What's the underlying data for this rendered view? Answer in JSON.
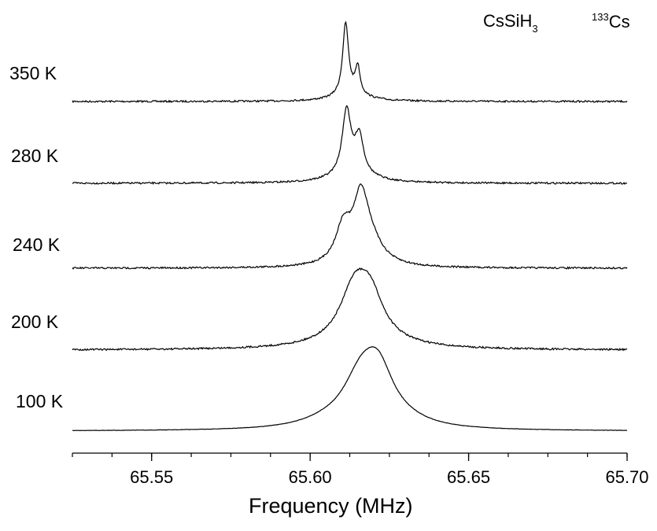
{
  "chart_data": {
    "type": "line",
    "title_main": "CsSiH",
    "title_sub": "3",
    "nucleus_sup": "133",
    "nucleus_main": "Cs",
    "xlabel": "Frequency (MHz)",
    "xlim": [
      65.525,
      65.7
    ],
    "xticks": [
      65.55,
      65.6,
      65.65,
      65.7
    ],
    "xtick_labels": [
      "65.55",
      "65.60",
      "65.65",
      "65.70"
    ],
    "y_axis_shown": false,
    "series": [
      {
        "name": "350 K",
        "peaks": [
          {
            "x": 65.6112,
            "h": 1.0,
            "w": 0.0011
          },
          {
            "x": 65.615,
            "h": 0.38,
            "w": 0.0009
          },
          {
            "x": 65.613,
            "h": 0.1,
            "w": 0.006
          }
        ]
      },
      {
        "name": "280 K",
        "peaks": [
          {
            "x": 65.6115,
            "h": 0.97,
            "w": 0.0016
          },
          {
            "x": 65.6155,
            "h": 0.56,
            "w": 0.0016
          },
          {
            "x": 65.6135,
            "h": 0.16,
            "w": 0.007
          }
        ]
      },
      {
        "name": "240 K",
        "peaks": [
          {
            "x": 65.6105,
            "h": 0.55,
            "w": 0.003
          },
          {
            "x": 65.616,
            "h": 0.88,
            "w": 0.0028
          },
          {
            "x": 65.6185,
            "h": 0.38,
            "w": 0.005
          }
        ]
      },
      {
        "name": "200 K",
        "peaks": [
          {
            "x": 65.614,
            "h": 0.7,
            "w": 0.0055
          },
          {
            "x": 65.619,
            "h": 0.55,
            "w": 0.005
          },
          {
            "x": 65.6165,
            "h": 0.12,
            "w": 0.014
          }
        ]
      },
      {
        "name": "100 K",
        "peaks": [
          {
            "x": 65.616,
            "h": 0.55,
            "w": 0.007
          },
          {
            "x": 65.6215,
            "h": 0.6,
            "w": 0.006
          },
          {
            "x": 65.605,
            "h": 0.06,
            "w": 0.01
          },
          {
            "x": 65.63,
            "h": 0.05,
            "w": 0.01
          }
        ]
      }
    ]
  }
}
